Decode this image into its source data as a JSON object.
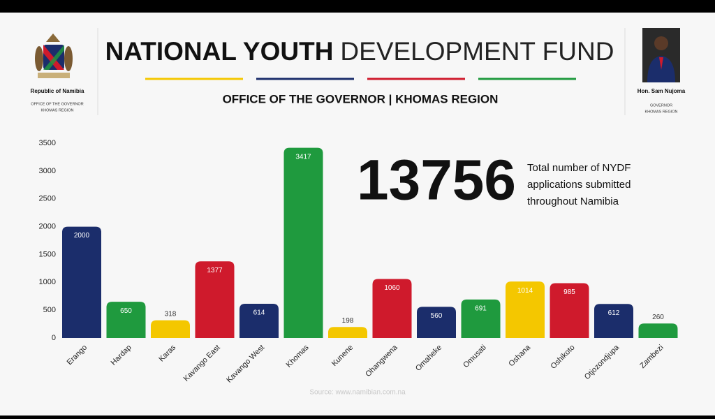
{
  "header": {
    "title_bold": "NATIONAL YOUTH",
    "title_light": "DEVELOPMENT FUND",
    "subtitle": "OFFICE OF THE GOVERNOR | KHOMAS REGION",
    "left": {
      "name": "Republic of Namibia",
      "line1": "OFFICE OF THE GOVERNOR",
      "line2": "KHOMAS REGION"
    },
    "right": {
      "name": "Hon. Sam Nujoma",
      "line1": "GOVERNOR",
      "line2": "KHOMAS REGION"
    }
  },
  "stat": {
    "value": 13756,
    "lines": [
      "Total number of NYDF",
      "applications submitted",
      "throughout Namibia"
    ]
  },
  "source": "Source: www.namibian.com.na",
  "chart_data": {
    "type": "bar",
    "categories": [
      "Erango",
      "Hardap",
      "Karas",
      "Kavango East",
      "Kavango West",
      "Khomas",
      "Kunene",
      "Ohangwena",
      "Omaheke",
      "Omusati",
      "Oshana",
      "Oshikoto",
      "Otjozondjupa",
      "Zambezi"
    ],
    "values": [
      2000,
      650,
      318,
      1377,
      614,
      3417,
      198,
      1060,
      560,
      691,
      1014,
      985,
      612,
      260
    ],
    "colors": [
      "#1b2d6b",
      "#1f9a3e",
      "#f4c700",
      "#cf1a2c",
      "#1b2d6b",
      "#1f9a3e",
      "#f4c700",
      "#cf1a2c",
      "#1b2d6b",
      "#1f9a3e",
      "#f4c700",
      "#cf1a2c",
      "#1b2d6b",
      "#1f9a3e"
    ],
    "ylim": [
      0,
      3500
    ],
    "yticks": [
      0,
      500,
      1000,
      1500,
      2000,
      2500,
      3000,
      3500
    ]
  }
}
